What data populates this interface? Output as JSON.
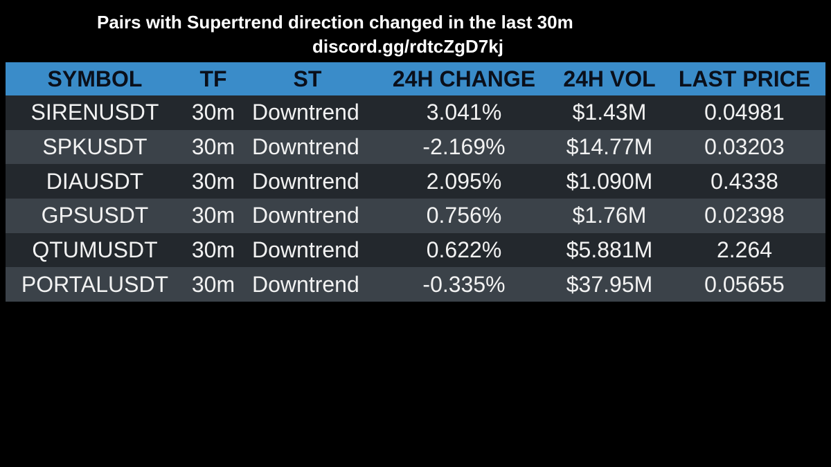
{
  "header": {
    "title": "Pairs with Supertrend direction changed in the last 30m",
    "subtitle": "discord.gg/rdtcZgD7kj"
  },
  "table": {
    "columns": [
      "SYMBOL",
      "TF",
      "ST",
      "24H CHANGE",
      "24H VOL",
      "LAST PRICE"
    ],
    "rows": [
      [
        "SIRENUSDT",
        "30m",
        "Downtrend",
        "3.041%",
        "$1.43M",
        "0.04981"
      ],
      [
        "SPKUSDT",
        "30m",
        "Downtrend",
        "-2.169%",
        "$14.77M",
        "0.03203"
      ],
      [
        "DIAUSDT",
        "30m",
        "Downtrend",
        "2.095%",
        "$1.090M",
        "0.4338"
      ],
      [
        "GPSUSDT",
        "30m",
        "Downtrend",
        "0.756%",
        "$1.76M",
        "0.02398"
      ],
      [
        "QTUMUSDT",
        "30m",
        "Downtrend",
        "0.622%",
        "$5.881M",
        "2.264"
      ],
      [
        "PORTALUSDT",
        "30m",
        "Downtrend",
        "-0.335%",
        "$37.95M",
        "0.05655"
      ]
    ]
  },
  "colors": {
    "background": "#000000",
    "header_bg": "#3a8cc9",
    "header_text": "#0a0f1a",
    "row_dark": "#23282d",
    "row_light": "#3b4249",
    "cell_text": "#f2f2f2"
  }
}
